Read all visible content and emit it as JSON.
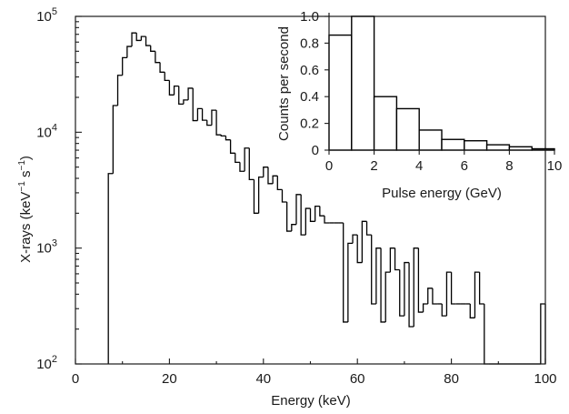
{
  "chart_data": [
    {
      "type": "histogram",
      "y_scale": "log",
      "xlabel": "Energy (keV)",
      "ylabel": "X-rays (keV",
      "ylabel_sup1": "−1",
      "ylabel_mid": " s",
      "ylabel_sup2": "−1",
      "ylabel_end": ")",
      "xlim": [
        0,
        100
      ],
      "ylim": [
        100,
        100000
      ],
      "x_ticks": [
        "0",
        "20",
        "40",
        "60",
        "80",
        "100"
      ],
      "y_ticks": [
        {
          "base": "10",
          "exp": "2"
        },
        {
          "base": "10",
          "exp": "3"
        },
        {
          "base": "10",
          "exp": "4"
        },
        {
          "base": "10",
          "exp": "5"
        }
      ],
      "bin_width": 1,
      "bins_start": 7,
      "bins": [
        {
          "x": 7,
          "y": 4400
        },
        {
          "x": 8,
          "y": 17000
        },
        {
          "x": 9,
          "y": 31000
        },
        {
          "x": 10,
          "y": 44000
        },
        {
          "x": 11,
          "y": 55000
        },
        {
          "x": 12,
          "y": 72000
        },
        {
          "x": 13,
          "y": 62000
        },
        {
          "x": 14,
          "y": 67000
        },
        {
          "x": 15,
          "y": 56000
        },
        {
          "x": 16,
          "y": 50000
        },
        {
          "x": 17,
          "y": 40000
        },
        {
          "x": 18,
          "y": 33000
        },
        {
          "x": 19,
          "y": 28000
        },
        {
          "x": 20,
          "y": 21000
        },
        {
          "x": 21,
          "y": 25000
        },
        {
          "x": 22,
          "y": 17500
        },
        {
          "x": 23,
          "y": 19000
        },
        {
          "x": 24,
          "y": 24000
        },
        {
          "x": 25,
          "y": 12600
        },
        {
          "x": 26,
          "y": 16000
        },
        {
          "x": 27,
          "y": 12700
        },
        {
          "x": 28,
          "y": 11500
        },
        {
          "x": 29,
          "y": 15500
        },
        {
          "x": 30,
          "y": 9500
        },
        {
          "x": 31,
          "y": 9300
        },
        {
          "x": 32,
          "y": 8600
        },
        {
          "x": 33,
          "y": 6600
        },
        {
          "x": 34,
          "y": 5500
        },
        {
          "x": 35,
          "y": 4600
        },
        {
          "x": 36,
          "y": 7300
        },
        {
          "x": 37,
          "y": 3900
        },
        {
          "x": 38,
          "y": 2000
        },
        {
          "x": 39,
          "y": 4100
        },
        {
          "x": 40,
          "y": 5000
        },
        {
          "x": 41,
          "y": 3600
        },
        {
          "x": 42,
          "y": 4200
        },
        {
          "x": 43,
          "y": 3200
        },
        {
          "x": 44,
          "y": 2500
        },
        {
          "x": 45,
          "y": 1400
        },
        {
          "x": 46,
          "y": 1600
        },
        {
          "x": 47,
          "y": 2900
        },
        {
          "x": 48,
          "y": 1300
        },
        {
          "x": 49,
          "y": 2200
        },
        {
          "x": 50,
          "y": 1700
        },
        {
          "x": 51,
          "y": 2300
        },
        {
          "x": 52,
          "y": 1900
        },
        {
          "x": 53,
          "y": 1650
        },
        {
          "x": 54,
          "y": 1650
        },
        {
          "x": 55,
          "y": 1650
        },
        {
          "x": 56,
          "y": 1650
        },
        {
          "x": 57,
          "y": 230
        },
        {
          "x": 58,
          "y": 1100
        },
        {
          "x": 59,
          "y": 1300
        },
        {
          "x": 60,
          "y": 750
        },
        {
          "x": 61,
          "y": 1700
        },
        {
          "x": 62,
          "y": 1300
        },
        {
          "x": 63,
          "y": 330
        },
        {
          "x": 64,
          "y": 1000
        },
        {
          "x": 65,
          "y": 230
        },
        {
          "x": 66,
          "y": 620
        },
        {
          "x": 67,
          "y": 1000
        },
        {
          "x": 68,
          "y": 650
        },
        {
          "x": 69,
          "y": 260
        },
        {
          "x": 70,
          "y": 750
        },
        {
          "x": 71,
          "y": 210
        },
        {
          "x": 72,
          "y": 1000
        },
        {
          "x": 73,
          "y": 280
        },
        {
          "x": 74,
          "y": 330
        },
        {
          "x": 75,
          "y": 450
        },
        {
          "x": 76,
          "y": 330
        },
        {
          "x": 77,
          "y": 330
        },
        {
          "x": 78,
          "y": 260
        },
        {
          "x": 79,
          "y": 620
        },
        {
          "x": 80,
          "y": 330
        },
        {
          "x": 81,
          "y": 330
        },
        {
          "x": 82,
          "y": 330
        },
        {
          "x": 83,
          "y": 330
        },
        {
          "x": 84,
          "y": 250
        },
        {
          "x": 85,
          "y": 620
        },
        {
          "x": 86,
          "y": 330
        },
        {
          "x": 87,
          "y": 100
        },
        {
          "x": 88,
          "y": 100
        },
        {
          "x": 89,
          "y": 100
        },
        {
          "x": 90,
          "y": 100
        },
        {
          "x": 91,
          "y": 100
        },
        {
          "x": 92,
          "y": 100
        },
        {
          "x": 93,
          "y": 100
        },
        {
          "x": 94,
          "y": 100
        },
        {
          "x": 95,
          "y": 100
        },
        {
          "x": 96,
          "y": 100
        },
        {
          "x": 97,
          "y": 100
        },
        {
          "x": 98,
          "y": 100
        },
        {
          "x": 99,
          "y": 330
        }
      ]
    },
    {
      "type": "bar",
      "xlabel": "Pulse energy (GeV)",
      "ylabel": "Counts per second",
      "xlim": [
        0,
        10
      ],
      "ylim": [
        0,
        1.0
      ],
      "x_ticks": [
        "0",
        "2",
        "4",
        "6",
        "8",
        "10"
      ],
      "y_ticks": [
        "0",
        "0.2",
        "0.4",
        "0.6",
        "0.8",
        "1.0"
      ],
      "bin_width": 1,
      "bins": [
        {
          "x": 0,
          "y": 0.86
        },
        {
          "x": 1,
          "y": 1.0
        },
        {
          "x": 2,
          "y": 0.4
        },
        {
          "x": 3,
          "y": 0.31
        },
        {
          "x": 4,
          "y": 0.15
        },
        {
          "x": 5,
          "y": 0.08
        },
        {
          "x": 6,
          "y": 0.07
        },
        {
          "x": 7,
          "y": 0.04
        },
        {
          "x": 8,
          "y": 0.025
        },
        {
          "x": 9,
          "y": 0.01
        }
      ]
    }
  ]
}
